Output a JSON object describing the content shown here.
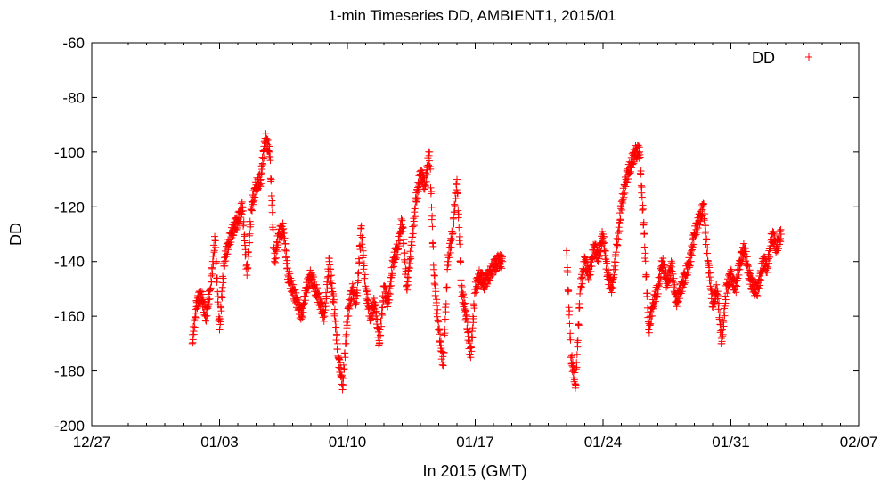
{
  "chart_data": {
    "type": "scatter",
    "title": "1-min Timeseries DD, AMBIENT1, 2015/01",
    "xlabel": "In 2015 (GMT)",
    "ylabel": "DD",
    "xlim": [
      "2014-12-27",
      "2015-02-07"
    ],
    "ylim": [
      -200,
      -60
    ],
    "x_ticks": [
      "2014-12-27",
      "2015-01-03",
      "2015-01-10",
      "2015-01-17",
      "2015-01-24",
      "2015-01-31",
      "2015-02-07"
    ],
    "x_tick_labels": [
      "12/27",
      "01/03",
      "01/10",
      "01/17",
      "01/24",
      "01/31",
      "02/07"
    ],
    "y_ticks": [
      -200,
      -180,
      -160,
      -140,
      -120,
      -100,
      -80,
      -60
    ],
    "y_tick_labels": [
      "-200",
      "-180",
      "-160",
      "-140",
      "-120",
      "-100",
      "-80",
      "-60"
    ],
    "x_minor_ticks_per_major": 7,
    "grid": false,
    "legend_position": "top-right",
    "marker": "plus",
    "color": "#ff0000",
    "series": [
      {
        "name": "DD",
        "x": [
          "2015-01-01 12:00",
          "2015-01-01 18:00",
          "2015-01-02 00:00",
          "2015-01-02 06:00",
          "2015-01-02 12:00",
          "2015-01-02 18:00",
          "2015-01-03 00:00",
          "2015-01-03 06:00",
          "2015-01-03 12:00",
          "2015-01-03 18:00",
          "2015-01-04 00:00",
          "2015-01-04 06:00",
          "2015-01-04 12:00",
          "2015-01-04 18:00",
          "2015-01-05 00:00",
          "2015-01-05 06:00",
          "2015-01-05 12:00",
          "2015-01-05 18:00",
          "2015-01-06 00:00",
          "2015-01-06 06:00",
          "2015-01-06 12:00",
          "2015-01-06 18:00",
          "2015-01-07 00:00",
          "2015-01-07 06:00",
          "2015-01-07 12:00",
          "2015-01-07 18:00",
          "2015-01-08 00:00",
          "2015-01-08 06:00",
          "2015-01-08 12:00",
          "2015-01-08 18:00",
          "2015-01-09 00:00",
          "2015-01-09 06:00",
          "2015-01-09 12:00",
          "2015-01-09 18:00",
          "2015-01-10 00:00",
          "2015-01-10 06:00",
          "2015-01-10 12:00",
          "2015-01-10 18:00",
          "2015-01-11 00:00",
          "2015-01-11 06:00",
          "2015-01-11 12:00",
          "2015-01-11 18:00",
          "2015-01-12 00:00",
          "2015-01-12 06:00",
          "2015-01-12 12:00",
          "2015-01-12 18:00",
          "2015-01-13 00:00",
          "2015-01-13 06:00",
          "2015-01-13 12:00",
          "2015-01-13 18:00",
          "2015-01-14 00:00",
          "2015-01-14 06:00",
          "2015-01-14 12:00",
          "2015-01-14 18:00",
          "2015-01-15 00:00",
          "2015-01-15 06:00",
          "2015-01-15 12:00",
          "2015-01-15 18:00",
          "2015-01-16 00:00",
          "2015-01-16 06:00",
          "2015-01-16 12:00",
          "2015-01-16 18:00",
          "2015-01-17 00:00",
          "2015-01-17 06:00",
          "2015-01-17 12:00",
          "2015-01-17 18:00",
          "2015-01-18 00:00",
          "2015-01-18 06:00",
          "2015-01-18 12:00",
          "2015-01-22 00:00",
          "2015-01-22 06:00",
          "2015-01-22 12:00",
          "2015-01-22 18:00",
          "2015-01-23 00:00",
          "2015-01-23 06:00",
          "2015-01-23 12:00",
          "2015-01-23 18:00",
          "2015-01-24 00:00",
          "2015-01-24 06:00",
          "2015-01-24 12:00",
          "2015-01-24 18:00",
          "2015-01-25 00:00",
          "2015-01-25 06:00",
          "2015-01-25 12:00",
          "2015-01-25 18:00",
          "2015-01-26 00:00",
          "2015-01-26 06:00",
          "2015-01-26 12:00",
          "2015-01-26 18:00",
          "2015-01-27 00:00",
          "2015-01-27 06:00",
          "2015-01-27 12:00",
          "2015-01-27 18:00",
          "2015-01-28 00:00",
          "2015-01-28 06:00",
          "2015-01-28 12:00",
          "2015-01-28 18:00",
          "2015-01-29 00:00",
          "2015-01-29 06:00",
          "2015-01-29 12:00",
          "2015-01-29 18:00",
          "2015-01-30 00:00",
          "2015-01-30 06:00",
          "2015-01-30 12:00",
          "2015-01-30 18:00",
          "2015-01-31 00:00",
          "2015-01-31 06:00",
          "2015-01-31 12:00",
          "2015-01-31 18:00",
          "2015-02-01 00:00",
          "2015-02-01 06:00",
          "2015-02-01 12:00",
          "2015-02-01 18:00",
          "2015-02-02 00:00",
          "2015-02-02 06:00",
          "2015-02-02 12:00",
          "2015-02-02 18:00"
        ],
        "y": [
          -170,
          -155,
          -152,
          -160,
          -150,
          -132,
          -165,
          -140,
          -133,
          -128,
          -125,
          -120,
          -145,
          -120,
          -112,
          -110,
          -95,
          -100,
          -140,
          -130,
          -128,
          -145,
          -150,
          -155,
          -160,
          -150,
          -145,
          -150,
          -155,
          -160,
          -140,
          -155,
          -175,
          -185,
          -160,
          -150,
          -155,
          -128,
          -150,
          -160,
          -155,
          -170,
          -150,
          -155,
          -140,
          -135,
          -125,
          -150,
          -135,
          -118,
          -108,
          -112,
          -100,
          -145,
          -165,
          -178,
          -140,
          -130,
          -110,
          -150,
          -160,
          -175,
          -150,
          -145,
          -148,
          -145,
          -142,
          -140,
          -140,
          -136,
          -175,
          -185,
          -150,
          -140,
          -145,
          -135,
          -138,
          -130,
          -145,
          -150,
          -135,
          -120,
          -110,
          -105,
          -100,
          -100,
          -130,
          -165,
          -155,
          -150,
          -140,
          -148,
          -142,
          -155,
          -150,
          -145,
          -140,
          -130,
          -125,
          -120,
          -140,
          -155,
          -150,
          -170,
          -150,
          -145,
          -150,
          -140,
          -135,
          -145,
          -150,
          -150,
          -140,
          -142,
          -130,
          -135,
          -130
        ]
      }
    ],
    "series_labels": [
      "DD"
    ]
  }
}
